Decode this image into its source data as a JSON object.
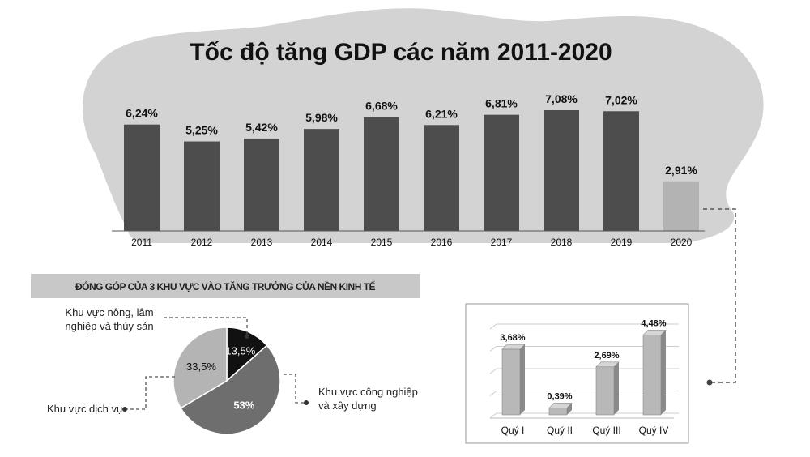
{
  "title": "Tốc độ tăng GDP các năm 2011-2020",
  "colors": {
    "blob": "#d3d3d3",
    "bar": "#4d4d4d",
    "bar_highlight": "#b3b3b3",
    "banner": "#c8c8c8",
    "pie_black": "#111111",
    "pie_dark": "#6e6e6e",
    "pie_light": "#b4b4b4",
    "quarter_bar": "#b8b8b8"
  },
  "chart_data": [
    {
      "type": "bar",
      "title": "Tốc độ tăng GDP các năm 2011-2020",
      "categories": [
        "2011",
        "2012",
        "2013",
        "2014",
        "2015",
        "2016",
        "2017",
        "2018",
        "2019",
        "2020"
      ],
      "values": [
        6.24,
        5.25,
        5.42,
        5.98,
        6.68,
        6.21,
        6.81,
        7.08,
        7.02,
        2.91
      ],
      "value_labels": [
        "6,24%",
        "5,25%",
        "5,42%",
        "5,98%",
        "6,68%",
        "6,21%",
        "6,81%",
        "7,08%",
        "7,02%",
        "2,91%"
      ],
      "highlight_category": "2020",
      "ylim": [
        0,
        7.5
      ],
      "grid": false
    },
    {
      "type": "pie",
      "title": "ĐÓNG GÓP CỦA 3 KHU VỰC VÀO TĂNG TRƯỞNG CỦA NỀN KINH TẾ",
      "slices": [
        {
          "label": "Khu vực nông, lâm nghiệp và thủy sản",
          "label_lines": [
            "Khu vực nông, lâm",
            "nghiệp và thủy sản"
          ],
          "value": 13.5,
          "value_label": "13,5%"
        },
        {
          "label": "Khu vực công nghiệp và xây dựng",
          "label_lines": [
            "Khu vực công nghiệp",
            "và xây dựng"
          ],
          "value": 53,
          "value_label": "53%"
        },
        {
          "label": "Khu vực dịch vụ",
          "label_lines": [
            "Khu vực dịch vụ"
          ],
          "value": 33.5,
          "value_label": "33,5%"
        }
      ]
    },
    {
      "type": "bar",
      "categories": [
        "Quý I",
        "Quý II",
        "Quý III",
        "Quý IV"
      ],
      "values": [
        3.68,
        0.39,
        2.69,
        4.48
      ],
      "value_labels": [
        "3,68%",
        "0,39%",
        "2,69%",
        "4,48%"
      ],
      "ylim": [
        0,
        5
      ],
      "grid": true
    }
  ]
}
